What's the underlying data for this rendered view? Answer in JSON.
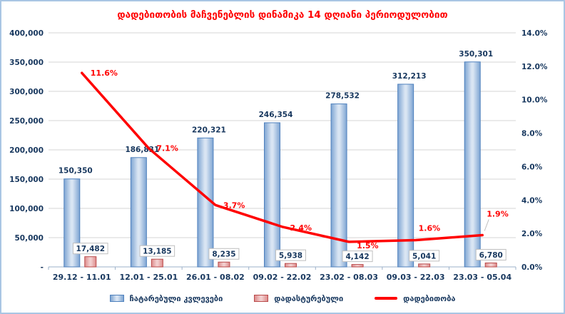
{
  "chart": {
    "title": "დადებითობის მაჩვენებლის დინამიკა 14 დღიანი პერიოდულობით",
    "legend": {
      "tests": "ჩატარებული კვლევები",
      "confirmed": "დადასტურებული",
      "positivity": "დადებითობა"
    }
  },
  "chart_data": {
    "type": "bar",
    "subtype": "combo-bar-line-dual-axis",
    "title": "დადებითობის მაჩვენებლის დინამიკა 14 დღიანი პერიოდულობით",
    "categories": [
      "29.12 - 11.01",
      "12.01 - 25.01",
      "26.01 - 08.02",
      "09.02 - 22.02",
      "23.02 - 08.03",
      "09.03 - 22.03",
      "23.03 - 05.04"
    ],
    "series": [
      {
        "name": "ჩატარებული კვლევები",
        "type": "bar",
        "axis": "left",
        "values": [
          150350,
          186831,
          220321,
          246354,
          278532,
          312213,
          350301
        ],
        "labels": [
          "150,350",
          "186,831",
          "220,321",
          "246,354",
          "278,532",
          "312,213",
          "350,301"
        ]
      },
      {
        "name": "დადასტურებული",
        "type": "bar",
        "axis": "left",
        "values": [
          17482,
          13185,
          8235,
          5938,
          4142,
          5041,
          6780
        ],
        "labels": [
          "17,482",
          "13,185",
          "8,235",
          "5,938",
          "4,142",
          "5,041",
          "6,780"
        ]
      },
      {
        "name": "დადებითობა",
        "type": "line",
        "axis": "right",
        "values": [
          11.6,
          7.1,
          3.7,
          2.4,
          1.5,
          1.6,
          1.9
        ],
        "labels": [
          "11.6%",
          "7.1%",
          "3.7%",
          "2.4%",
          "1.5%",
          "1.6%",
          "1.9%"
        ]
      }
    ],
    "left_axis": {
      "min": 0,
      "max": 400000,
      "step": 50000,
      "tick_labels": [
        "400,000",
        "350,000",
        "300,000",
        "250,000",
        "200,000",
        "150,000",
        "100,000",
        "50,000",
        "-"
      ]
    },
    "right_axis": {
      "min": 0,
      "max": 14,
      "step": 2,
      "tick_labels": [
        "14.0%",
        "12.0%",
        "10.0%",
        "8.0%",
        "6.0%",
        "4.0%",
        "2.0%",
        "0.0%"
      ]
    },
    "grid": true,
    "legend_position": "bottom"
  },
  "colors": {
    "title": "#FF0000",
    "line": "#FF0000",
    "bar_blue_border": "#4F81BD",
    "bar_blue_edge": "#7DA4D2",
    "bar_blue_center": "#D9E5F3",
    "bar_red_border": "#B94A4A",
    "bar_red_edge": "#DD8A8A",
    "bar_red_center": "#F2CFCF",
    "axis_text": "#17375E",
    "grid": "#D6D6D6",
    "axis_line": "#9BB0C9",
    "frame_border": "#A9C6E4",
    "label_box_border": "#BFBFBF"
  }
}
